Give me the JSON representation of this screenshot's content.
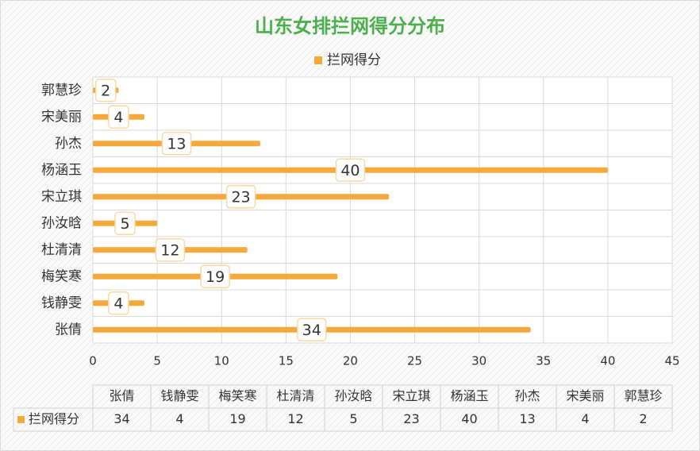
{
  "chart_data": {
    "type": "hbar",
    "title": "山东女排拦网得分分布",
    "categories": [
      "张倩",
      "钱静雯",
      "梅笑寒",
      "杜清清",
      "孙汝晗",
      "宋立琪",
      "杨涵玉",
      "孙杰",
      "宋美丽",
      "郭慧珍"
    ],
    "series": [
      {
        "name": "拦网得分",
        "color": "#f5a93a",
        "values": [
          34,
          4,
          19,
          12,
          5,
          23,
          40,
          13,
          4,
          2
        ]
      }
    ],
    "xlim": [
      0,
      45
    ],
    "xticks": [
      0,
      5,
      10,
      15,
      20,
      25,
      30,
      35,
      40,
      45
    ],
    "grid": true,
    "legend": "top",
    "data_table": true
  }
}
